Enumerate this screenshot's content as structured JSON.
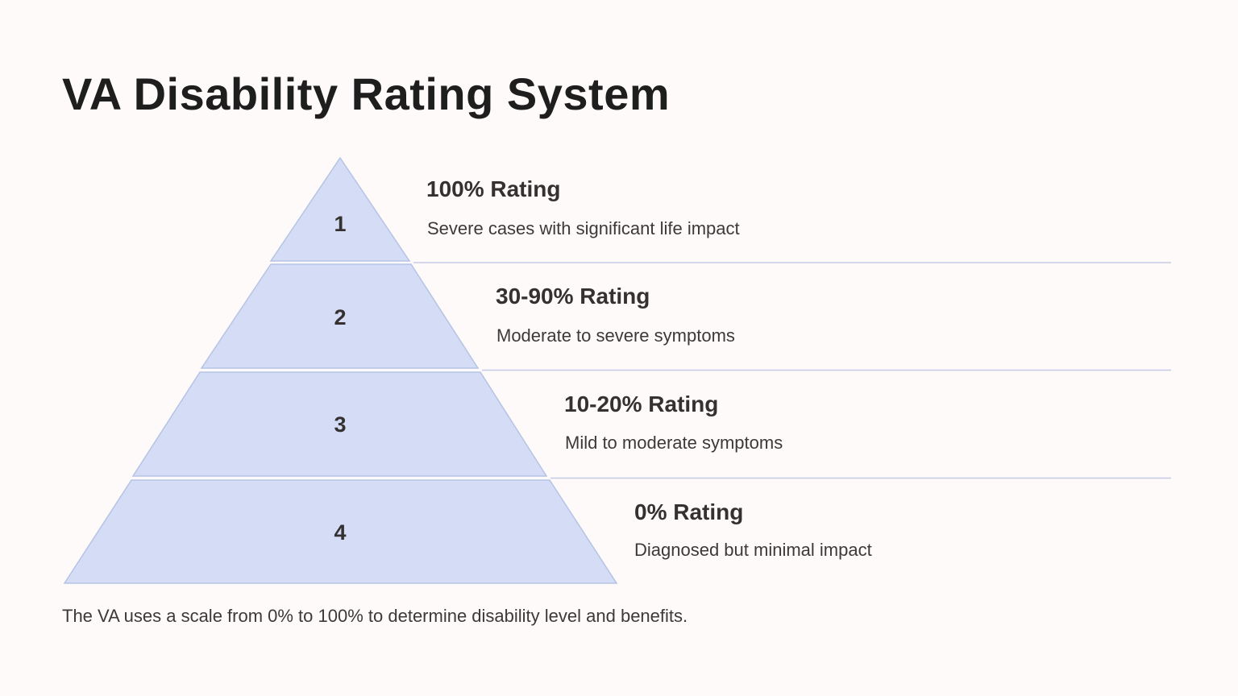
{
  "title": "VA Disability Rating System",
  "colors": {
    "tier_fill": "#d4ddf5",
    "tier_stroke": "#b5c3e5",
    "divider": "#c3cbe6",
    "background": "#fdfaf9"
  },
  "tiers": [
    {
      "number": "1",
      "heading": "100% Rating",
      "description": "Severe cases with significant life impact"
    },
    {
      "number": "2",
      "heading": "30-90% Rating",
      "description": "Moderate to severe symptoms"
    },
    {
      "number": "3",
      "heading": "10-20% Rating",
      "description": "Mild to moderate symptoms"
    },
    {
      "number": "4",
      "heading": "0% Rating",
      "description": "Diagnosed but minimal impact"
    }
  ],
  "footer": "The VA uses a scale from 0% to 100% to determine disability level and benefits."
}
